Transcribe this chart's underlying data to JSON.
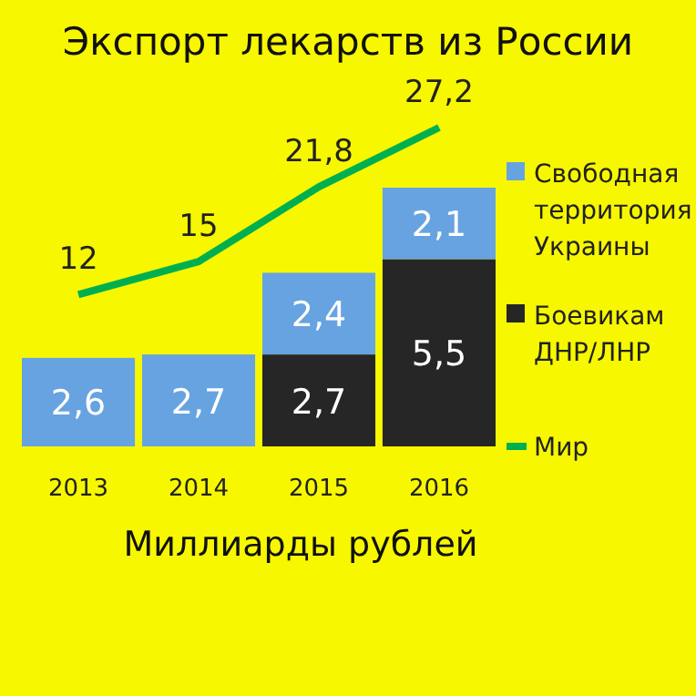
{
  "chart_data": {
    "type": "bar",
    "title": "Экспорт лекарств из России",
    "categories": [
      "2013",
      "2014",
      "2015",
      "2016"
    ],
    "stacked": true,
    "series": [
      {
        "name": "Боевикам ДНР/ЛНР",
        "color": "#262626",
        "values": [
          null,
          null,
          2.7,
          5.5
        ],
        "value_labels": [
          null,
          null,
          "2,7",
          "5,5"
        ]
      },
      {
        "name": "Свободная территория Украины",
        "color": "#66a3e0",
        "values": [
          2.6,
          2.7,
          2.4,
          2.1
        ],
        "value_labels": [
          "2,6",
          "2,7",
          "2,4",
          "2,1"
        ]
      },
      {
        "name": "Мир",
        "type": "line",
        "axis": "y2",
        "color": "#00b050",
        "values": [
          12,
          15,
          21.8,
          27.2
        ],
        "value_labels": [
          "12",
          "15",
          "21,8",
          "27,2"
        ]
      }
    ],
    "legend": "right",
    "marker": "none",
    "line_style": "solid",
    "annotations": [
      "Миллиарды рублей"
    ]
  }
}
